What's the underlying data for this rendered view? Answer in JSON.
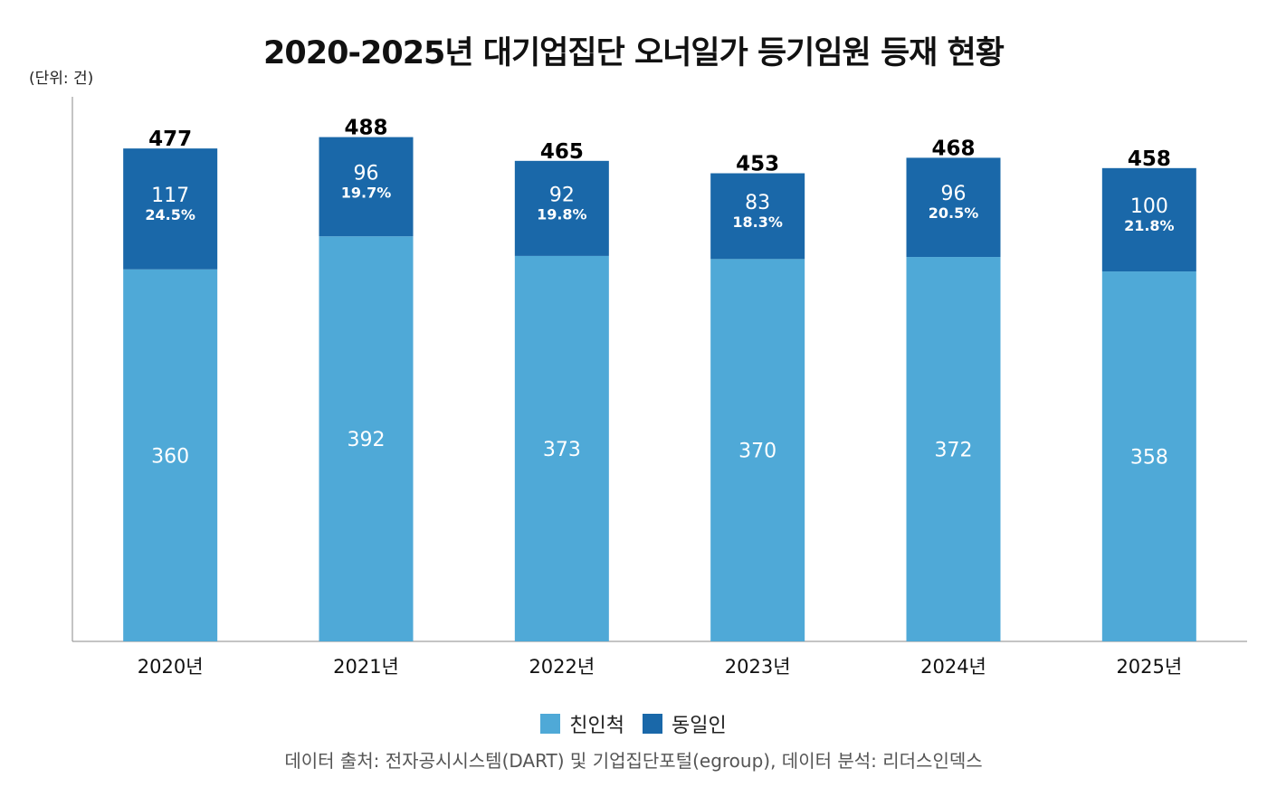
{
  "chart_data": {
    "type": "bar",
    "stacked": true,
    "title": "2020-2025년 대기업집단 오너일가 등기임원 등재 현황",
    "unit_label": "(단위: 건)",
    "categories": [
      "2020년",
      "2021년",
      "2022년",
      "2023년",
      "2024년",
      "2025년"
    ],
    "series": [
      {
        "name": "친인척",
        "values": [
          360,
          392,
          373,
          370,
          372,
          358
        ],
        "color": "#4FA9D7"
      },
      {
        "name": "동일인",
        "values": [
          117,
          96,
          92,
          83,
          96,
          100
        ],
        "color": "#1A68A9",
        "percent_labels": [
          "24.5%",
          "19.7%",
          "19.8%",
          "18.3%",
          "20.5%",
          "21.8%"
        ]
      }
    ],
    "totals": [
      477,
      488,
      465,
      453,
      468,
      458
    ],
    "ylim": [
      0,
      527
    ],
    "grid": false,
    "legend_position": "bottom",
    "source": "데이터 출처: 전자공시시스템(DART) 및 기업집단포털(egroup), 데이터 분석: 리더스인덱스"
  }
}
